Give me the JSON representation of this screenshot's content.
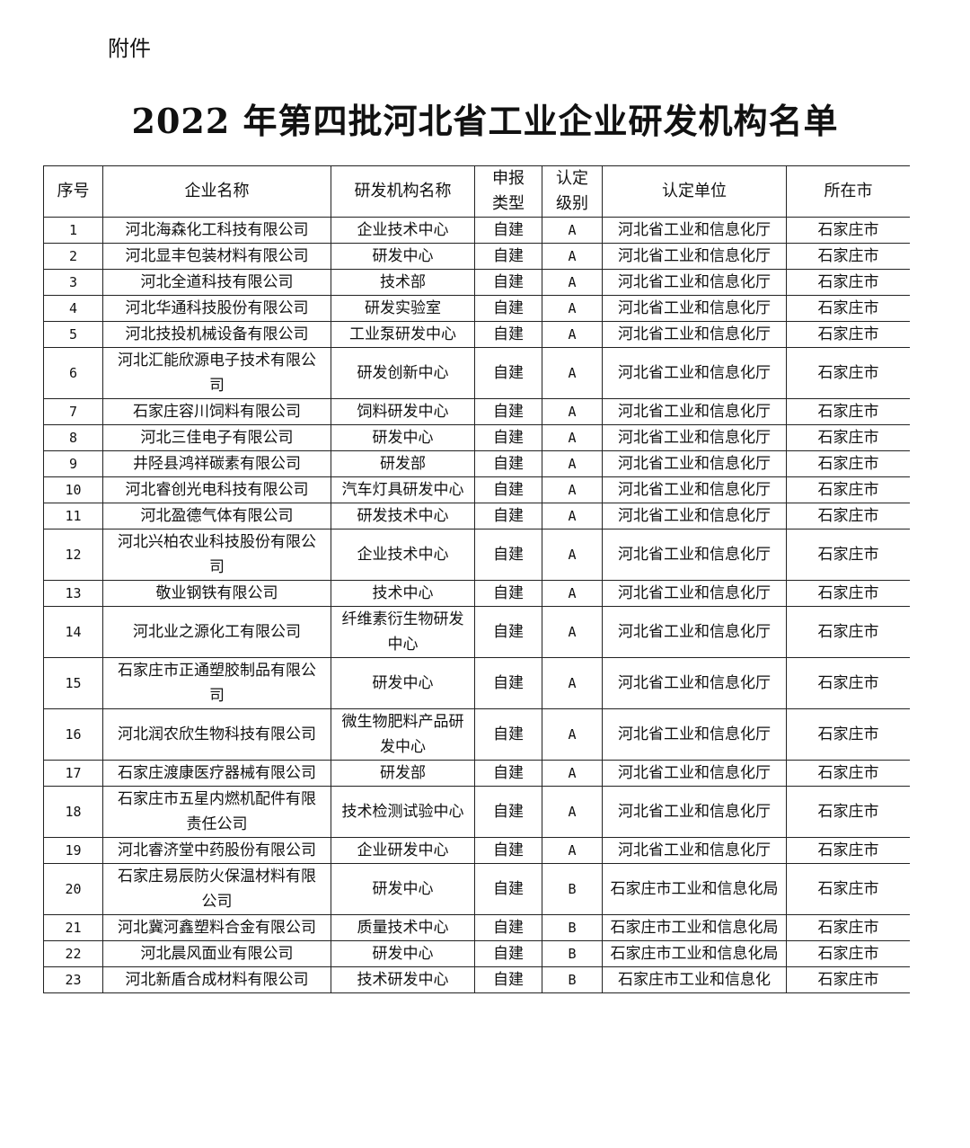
{
  "header": {
    "attachment": "附件",
    "title": "2022 年第四批河北省工业企业研发机构名单"
  },
  "table": {
    "columns": [
      "序号",
      "企业名称",
      "研发机构名称",
      "申报类型",
      "认定级别",
      "认定单位",
      "所在市"
    ],
    "rows": [
      [
        "1",
        "河北海森化工科技有限公司",
        "企业技术中心",
        "自建",
        "A",
        "河北省工业和信息化厅",
        "石家庄市"
      ],
      [
        "2",
        "河北显丰包装材料有限公司",
        "研发中心",
        "自建",
        "A",
        "河北省工业和信息化厅",
        "石家庄市"
      ],
      [
        "3",
        "河北全道科技有限公司",
        "技术部",
        "自建",
        "A",
        "河北省工业和信息化厅",
        "石家庄市"
      ],
      [
        "4",
        "河北华通科技股份有限公司",
        "研发实验室",
        "自建",
        "A",
        "河北省工业和信息化厅",
        "石家庄市"
      ],
      [
        "5",
        "河北技投机械设备有限公司",
        "工业泵研发中心",
        "自建",
        "A",
        "河北省工业和信息化厅",
        "石家庄市"
      ],
      [
        "6",
        "河北汇能欣源电子技术有限公司",
        "研发创新中心",
        "自建",
        "A",
        "河北省工业和信息化厅",
        "石家庄市"
      ],
      [
        "7",
        "石家庄容川饲料有限公司",
        "饲料研发中心",
        "自建",
        "A",
        "河北省工业和信息化厅",
        "石家庄市"
      ],
      [
        "8",
        "河北三佳电子有限公司",
        "研发中心",
        "自建",
        "A",
        "河北省工业和信息化厅",
        "石家庄市"
      ],
      [
        "9",
        "井陉县鸿祥碳素有限公司",
        "研发部",
        "自建",
        "A",
        "河北省工业和信息化厅",
        "石家庄市"
      ],
      [
        "10",
        "河北睿创光电科技有限公司",
        "汽车灯具研发中心",
        "自建",
        "A",
        "河北省工业和信息化厅",
        "石家庄市"
      ],
      [
        "11",
        "河北盈德气体有限公司",
        "研发技术中心",
        "自建",
        "A",
        "河北省工业和信息化厅",
        "石家庄市"
      ],
      [
        "12",
        "河北兴柏农业科技股份有限公司",
        "企业技术中心",
        "自建",
        "A",
        "河北省工业和信息化厅",
        "石家庄市"
      ],
      [
        "13",
        "敬业钢铁有限公司",
        "技术中心",
        "自建",
        "A",
        "河北省工业和信息化厅",
        "石家庄市"
      ],
      [
        "14",
        "河北业之源化工有限公司",
        "纤维素衍生物研发中心",
        "自建",
        "A",
        "河北省工业和信息化厅",
        "石家庄市"
      ],
      [
        "15",
        "石家庄市正通塑胶制品有限公司",
        "研发中心",
        "自建",
        "A",
        "河北省工业和信息化厅",
        "石家庄市"
      ],
      [
        "16",
        "河北润农欣生物科技有限公司",
        "微生物肥料产品研发中心",
        "自建",
        "A",
        "河北省工业和信息化厅",
        "石家庄市"
      ],
      [
        "17",
        "石家庄渡康医疗器械有限公司",
        "研发部",
        "自建",
        "A",
        "河北省工业和信息化厅",
        "石家庄市"
      ],
      [
        "18",
        "石家庄市五星内燃机配件有限责任公司",
        "技术检测试验中心",
        "自建",
        "A",
        "河北省工业和信息化厅",
        "石家庄市"
      ],
      [
        "19",
        "河北睿济堂中药股份有限公司",
        "企业研发中心",
        "自建",
        "A",
        "河北省工业和信息化厅",
        "石家庄市"
      ],
      [
        "20",
        "石家庄易辰防火保温材料有限公司",
        "研发中心",
        "自建",
        "B",
        "石家庄市工业和信息化局",
        "石家庄市"
      ],
      [
        "21",
        "河北冀河鑫塑料合金有限公司",
        "质量技术中心",
        "自建",
        "B",
        "石家庄市工业和信息化局",
        "石家庄市"
      ],
      [
        "22",
        "河北晨风面业有限公司",
        "研发中心",
        "自建",
        "B",
        "石家庄市工业和信息化局",
        "石家庄市"
      ],
      [
        "23",
        "河北新盾合成材料有限公司",
        "技术研发中心",
        "自建",
        "B",
        "石家庄市工业和信息化",
        "石家庄市"
      ]
    ]
  }
}
